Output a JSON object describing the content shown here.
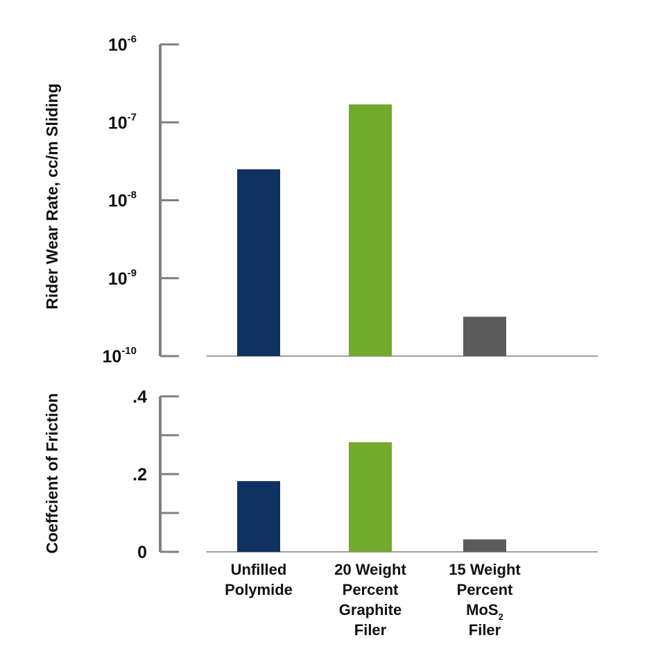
{
  "colors": {
    "axis": "#7f7f7f",
    "text": "#111111",
    "bars": [
      "#0f3262",
      "#72aa2c",
      "#5c5c5c"
    ]
  },
  "categories": [
    {
      "lines": [
        "Unfilled",
        "Polymide"
      ]
    },
    {
      "lines": [
        "20 Weight",
        "Percent",
        "Graphite",
        "Filer"
      ]
    },
    {
      "lines": [
        "15 Weight",
        "Percent",
        "MoS|2",
        "Filer"
      ]
    }
  ],
  "chart_data": [
    {
      "type": "bar",
      "categories": [
        "Unfilled Polymide",
        "20 Weight Percent Graphite Filer",
        "15 Weight Percent MoS2 Filer"
      ],
      "values": [
        2.5e-08,
        1.7e-07,
        3.2e-10
      ],
      "ylabel": "Rider Wear Rate, cc/m Sliding",
      "yscale": "log",
      "ylim": [
        1e-10,
        1e-06
      ],
      "yticks": [
        {
          "value": 1e-06,
          "base": "10",
          "exp": "-6"
        },
        {
          "value": 1e-07,
          "base": "10",
          "exp": "-7"
        },
        {
          "value": 1e-08,
          "base": "10",
          "exp": "-8"
        },
        {
          "value": 1e-09,
          "base": "10",
          "exp": "-9"
        },
        {
          "value": 1e-10,
          "base": "10",
          "exp": "-10"
        }
      ],
      "grid": false
    },
    {
      "type": "bar",
      "categories": [
        "Unfilled Polymide",
        "20 Weight Percent Graphite Filer",
        "15 Weight Percent MoS2 Filer"
      ],
      "values": [
        0.182,
        0.282,
        0.032
      ],
      "ylabel": "Coeffcient of Friction",
      "yscale": "linear",
      "ylim": [
        0,
        0.4
      ],
      "yticks": [
        {
          "value": 0.4,
          "label": ".4"
        },
        {
          "value": 0.3,
          "label": ""
        },
        {
          "value": 0.2,
          "label": ".2"
        },
        {
          "value": 0.1,
          "label": ""
        },
        {
          "value": 0,
          "label": "0"
        }
      ],
      "grid": false
    }
  ]
}
